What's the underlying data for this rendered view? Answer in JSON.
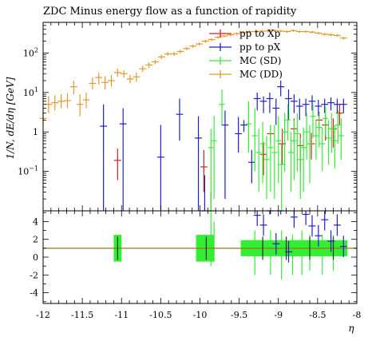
{
  "chart_data": {
    "type": "line",
    "title": "ZDC Minus energy flow as a function of rapidity",
    "xlabel": "η",
    "ylabel": "1/N, dE/dη [GeV]",
    "xlim": [
      -12,
      -8
    ],
    "ylim_log": [
      0.01,
      600
    ],
    "ratio_ylim": [
      -5.2,
      5.2
    ],
    "xticks": [
      "-12",
      "-11.5",
      "-11",
      "-10.5",
      "-10",
      "-9.5",
      "-9",
      "-8.5",
      "-8"
    ],
    "yticks_main": [
      {
        "v": 0.1,
        "base": "10",
        "exp": "−1"
      },
      {
        "v": 1,
        "base": "1",
        "exp": ""
      },
      {
        "v": 10,
        "base": "10",
        "exp": "1"
      },
      {
        "v": 100,
        "base": "10",
        "exp": "2"
      }
    ],
    "yticks_ratio": [
      "-4",
      "-2",
      "0",
      "2",
      "4"
    ],
    "legend": [
      {
        "label": "pp to Xp",
        "color": "#e41a1c"
      },
      {
        "label": "pp to pX",
        "color": "#1f1fc8"
      },
      {
        "label": "MC (SD)",
        "color": "#33ee33"
      },
      {
        "label": "MC (DD)",
        "color": "#e8962a"
      }
    ],
    "series": [
      {
        "name": "MC (DD)",
        "color": "#e8962a",
        "hw": 0.045,
        "points": [
          [
            -12,
            2.2,
            1.6,
            3.2
          ],
          [
            -11.93,
            5,
            3,
            8
          ],
          [
            -11.85,
            5.5,
            3.5,
            8.5
          ],
          [
            -11.77,
            6,
            4,
            9
          ],
          [
            -11.69,
            6.2,
            4,
            9.5
          ],
          [
            -11.61,
            14,
            9,
            20
          ],
          [
            -11.53,
            5,
            2.5,
            9
          ],
          [
            -11.45,
            6.5,
            4,
            10
          ],
          [
            -11.37,
            17,
            12,
            24
          ],
          [
            -11.29,
            24,
            16,
            32
          ],
          [
            -11.21,
            18,
            12,
            26
          ],
          [
            -11.13,
            20,
            14,
            28
          ],
          [
            -11.05,
            32,
            25,
            40
          ],
          [
            -10.97,
            30,
            24,
            37
          ],
          [
            -10.89,
            22,
            17,
            28
          ],
          [
            -10.81,
            25,
            19,
            32
          ],
          [
            -10.73,
            40,
            33,
            48
          ],
          [
            -10.65,
            50,
            42,
            58
          ],
          [
            -10.57,
            60,
            52,
            68
          ],
          [
            -10.49,
            80,
            70,
            90
          ],
          [
            -10.41,
            95,
            85,
            106
          ],
          [
            -10.33,
            95,
            85,
            106
          ],
          [
            -10.25,
            110,
            98,
            122
          ],
          [
            -10.17,
            130,
            118,
            142
          ],
          [
            -10.09,
            150,
            136,
            164
          ],
          [
            -10.01,
            170,
            155,
            186
          ],
          [
            -9.93,
            200,
            182,
            218
          ],
          [
            -9.85,
            220,
            200,
            240
          ],
          [
            -9.77,
            250,
            230,
            270
          ],
          [
            -9.69,
            270,
            250,
            290
          ],
          [
            -9.61,
            290,
            268,
            312
          ],
          [
            -9.53,
            310,
            288,
            332
          ],
          [
            -9.45,
            330,
            306,
            354
          ],
          [
            -9.37,
            350,
            325,
            375
          ],
          [
            -9.29,
            350,
            325,
            375
          ],
          [
            -9.21,
            360,
            335,
            385
          ],
          [
            -9.13,
            360,
            335,
            385
          ],
          [
            -9.05,
            370,
            345,
            395
          ],
          [
            -8.97,
            360,
            335,
            385
          ],
          [
            -8.89,
            350,
            325,
            375
          ],
          [
            -8.81,
            370,
            345,
            395
          ],
          [
            -8.73,
            350,
            325,
            375
          ],
          [
            -8.65,
            350,
            325,
            375
          ],
          [
            -8.57,
            340,
            315,
            365
          ],
          [
            -8.49,
            320,
            297,
            343
          ],
          [
            -8.41,
            300,
            278,
            322
          ],
          [
            -8.33,
            290,
            268,
            312
          ],
          [
            -8.25,
            280,
            258,
            302
          ],
          [
            -8.17,
            240,
            220,
            260
          ]
        ]
      },
      {
        "name": "pp to pX",
        "color": "#1f1fc8",
        "hw": 0.045,
        "points": [
          [
            -11.23,
            1.4,
            0.01,
            5
          ],
          [
            -10.98,
            1.6,
            0.01,
            4
          ],
          [
            -10.5,
            0.23,
            0.01,
            1.5
          ],
          [
            -10.26,
            2.8,
            0.6,
            7
          ],
          [
            -10.02,
            0.7,
            0.01,
            2.5
          ],
          [
            -9.94,
            0.01,
            0.01,
            0.08
          ],
          [
            -9.68,
            1.5,
            0.02,
            3.5
          ],
          [
            -9.51,
            0.9,
            0.3,
            2.4
          ],
          [
            -9.44,
            1.5,
            1,
            2
          ],
          [
            -9.34,
            0.17,
            0.05,
            0.35
          ],
          [
            -9.27,
            7,
            3.5,
            10
          ],
          [
            -9.19,
            6,
            3,
            8
          ],
          [
            -9.11,
            7,
            3,
            10
          ],
          [
            -9.03,
            4,
            1.5,
            7
          ],
          [
            -8.97,
            14,
            8,
            20
          ],
          [
            -8.87,
            7,
            2,
            12
          ],
          [
            -8.8,
            6,
            3,
            9
          ],
          [
            -8.73,
            4.5,
            2,
            7
          ],
          [
            -8.65,
            5,
            2.5,
            7
          ],
          [
            -8.57,
            6,
            3.5,
            8.5
          ],
          [
            -8.49,
            4.5,
            2.5,
            6.5
          ],
          [
            -8.41,
            5,
            3,
            7
          ],
          [
            -8.33,
            5.5,
            3.5,
            7.5
          ],
          [
            -8.25,
            5,
            3,
            7
          ],
          [
            -8.17,
            5,
            3,
            7
          ]
        ]
      },
      {
        "name": "pp to Xp",
        "color": "#e41a1c",
        "hw": 0.045,
        "points": [
          [
            -11.05,
            0.19,
            0.06,
            0.38
          ],
          [
            -9.95,
            0.13,
            0.03,
            0.35
          ],
          [
            -9.86,
            0.01,
            0.01,
            0.03
          ],
          [
            -9.19,
            0.27,
            0.08,
            0.55
          ],
          [
            -9.1,
            0.9,
            0.5,
            1.5
          ],
          [
            -8.95,
            0.5,
            0.15,
            1.2
          ],
          [
            -8.8,
            1.2,
            0.5,
            2.2
          ],
          [
            -8.72,
            0.45,
            0.1,
            0.9
          ],
          [
            -8.58,
            0.5,
            0.2,
            0.95
          ],
          [
            -8.48,
            2,
            1,
            3.2
          ],
          [
            -8.4,
            1.5,
            0.6,
            2.8
          ],
          [
            -8.3,
            1.2,
            0.4,
            2.2
          ],
          [
            -8.22,
            3,
            1.5,
            5
          ]
        ]
      },
      {
        "name": "MC (SD)",
        "color": "#33ee33",
        "hw": 0.035,
        "points": [
          [
            -9.86,
            0.4,
            0.01,
            1.2
          ],
          [
            -9.82,
            0.6,
            0.02,
            2.5
          ],
          [
            -9.72,
            5,
            1.5,
            12
          ],
          [
            -9.38,
            1.6,
            0.3,
            6
          ],
          [
            -9.3,
            0.8,
            0.1,
            4
          ],
          [
            -9.25,
            0.3,
            0.03,
            1.2
          ],
          [
            -9.2,
            0.5,
            0.05,
            1.8
          ],
          [
            -9.15,
            0.2,
            0.02,
            0.8
          ],
          [
            -9.1,
            0.4,
            0.03,
            1.5
          ],
          [
            -9.05,
            0.3,
            0.02,
            1.5
          ],
          [
            -9,
            0.6,
            0.05,
            2.5
          ],
          [
            -8.96,
            0.15,
            0.01,
            0.5
          ],
          [
            -8.92,
            1,
            0.1,
            3
          ],
          [
            -8.88,
            2,
            0.6,
            5
          ],
          [
            -8.84,
            0.3,
            0.03,
            1
          ],
          [
            -8.8,
            0.6,
            0.06,
            2
          ],
          [
            -8.76,
            0.9,
            0.1,
            3
          ],
          [
            -8.72,
            0.2,
            0.02,
            0.7
          ],
          [
            -8.68,
            0.4,
            0.03,
            1.3
          ],
          [
            -8.64,
            1,
            0.2,
            3
          ],
          [
            -8.6,
            0.5,
            0.05,
            1.5
          ],
          [
            -8.56,
            2.5,
            0.7,
            5
          ],
          [
            -8.52,
            0.8,
            0.2,
            2
          ],
          [
            -8.48,
            1.3,
            0.4,
            3
          ],
          [
            -8.44,
            0.5,
            0.1,
            1.3
          ],
          [
            -8.4,
            2.2,
            0.8,
            4.5
          ],
          [
            -8.36,
            0.7,
            0.15,
            2
          ],
          [
            -8.32,
            1.2,
            0.3,
            3
          ],
          [
            -8.28,
            0.6,
            0.12,
            1.5
          ],
          [
            -8.24,
            1.5,
            0.5,
            3.5
          ],
          [
            -8.2,
            0.8,
            0.2,
            2.2
          ]
        ]
      }
    ],
    "ratio": {
      "baseline": 1,
      "blue": [
        [
          -9.27,
          4.7
        ],
        [
          -9.19,
          3.6
        ],
        [
          -9.11,
          6
        ],
        [
          -9.03,
          1.5
        ],
        [
          -8.97,
          6
        ],
        [
          -8.87,
          0.6
        ],
        [
          -8.8,
          4.5
        ],
        [
          -8.65,
          4.8
        ],
        [
          -8.57,
          3.5
        ],
        [
          -8.49,
          2.4
        ],
        [
          -8.41,
          4.2
        ],
        [
          -8.33,
          1.8
        ],
        [
          -8.25,
          3.6
        ],
        [
          -8.17,
          1.2
        ]
      ],
      "green_bands": [
        [
          -11.05,
          0.05,
          1.5
        ],
        [
          -9.98,
          0.07,
          1.5
        ],
        [
          -9.89,
          0.07,
          1.5
        ],
        [
          -9.33,
          0.15,
          0.9
        ],
        [
          -9.25,
          0.08,
          0.9
        ],
        [
          -9.15,
          0.08,
          0.9
        ],
        [
          -9.05,
          0.08,
          0.9
        ],
        [
          -8.95,
          0.08,
          0.9
        ],
        [
          -8.85,
          0.08,
          0.9
        ],
        [
          -8.75,
          0.08,
          0.9
        ],
        [
          -8.65,
          0.08,
          0.9
        ],
        [
          -8.55,
          0.08,
          0.9
        ],
        [
          -8.45,
          0.08,
          0.9
        ],
        [
          -8.35,
          0.08,
          0.9
        ],
        [
          -8.25,
          0.08,
          0.9
        ],
        [
          -8.17,
          0.05,
          0.9
        ]
      ],
      "green_bars": [
        [
          -9.86,
          -1,
          6
        ],
        [
          -9.82,
          -0.5,
          4
        ],
        [
          -9.3,
          -2,
          3
        ],
        [
          -9.1,
          -2,
          3
        ],
        [
          -8.96,
          -2.5,
          3
        ],
        [
          -8.82,
          -2,
          2.5
        ],
        [
          -8.7,
          -2,
          3
        ],
        [
          -8.6,
          -1.5,
          2.5
        ],
        [
          -8.44,
          -2,
          2.5
        ],
        [
          -8.3,
          -1.5,
          2.5
        ]
      ],
      "dark_markers": [
        [
          -11.05,
          1
        ],
        [
          -9.92,
          1
        ],
        [
          -9.2,
          1
        ],
        [
          -8.9,
          1
        ],
        [
          -8.6,
          1
        ],
        [
          -8.3,
          1
        ]
      ]
    },
    "grid": false,
    "legend_position": "top-right"
  }
}
